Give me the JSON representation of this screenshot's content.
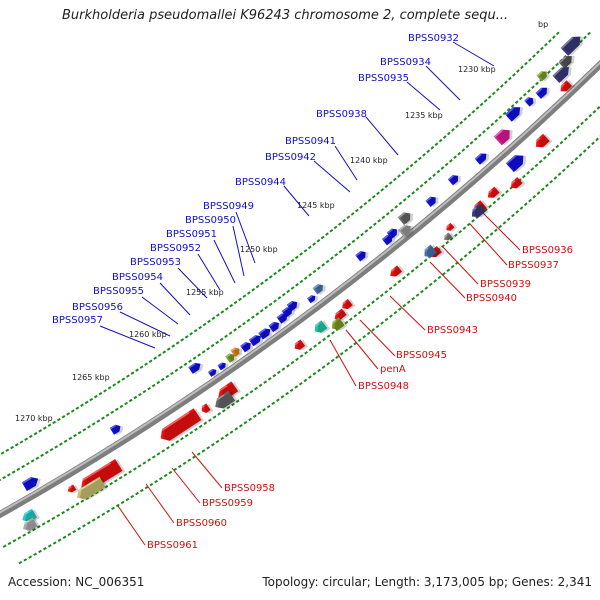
{
  "title": "Burkholderia pseudomallei K96243 chromosome 2, complete sequ...",
  "accession_label": "Accession: NC_006351",
  "summary_label": "Topology: circular; Length: 3,173,005 bp; Genes: 2,341",
  "colors": {
    "backbone": "#8a8a8a",
    "forward_gene": "#1010e0",
    "reverse_gene": "#ee1111",
    "top_label": "#1010c8",
    "bottom_label": "#d01010",
    "tick": "#1a8a1a"
  },
  "ruler": [
    {
      "text": "1230 kbp"
    },
    {
      "text": "1235 kbp"
    },
    {
      "text": "1240 kbp"
    },
    {
      "text": "1245 kbp"
    },
    {
      "text": "1250 kbp"
    },
    {
      "text": "1255 kbp"
    },
    {
      "text": "1260 kbp"
    },
    {
      "text": "1265 kbp"
    },
    {
      "text": "1270 kbp"
    },
    {
      "text": "bp"
    }
  ],
  "top_labels": [
    {
      "text": "BPSS0932"
    },
    {
      "text": "BPSS0934"
    },
    {
      "text": "BPSS0935"
    },
    {
      "text": "BPSS0938"
    },
    {
      "text": "BPSS0941"
    },
    {
      "text": "BPSS0942"
    },
    {
      "text": "BPSS0944"
    },
    {
      "text": "BPSS0949"
    },
    {
      "text": "BPSS0950"
    },
    {
      "text": "BPSS0951"
    },
    {
      "text": "BPSS0952"
    },
    {
      "text": "BPSS0953"
    },
    {
      "text": "BPSS0954"
    },
    {
      "text": "BPSS0955"
    },
    {
      "text": "BPSS0956"
    },
    {
      "text": "BPSS0957"
    }
  ],
  "bottom_labels": [
    {
      "text": "BPSS0936"
    },
    {
      "text": "BPSS0937"
    },
    {
      "text": "BPSS0939"
    },
    {
      "text": "BPSS0940"
    },
    {
      "text": "BPSS0943"
    },
    {
      "text": "BPSS0945"
    },
    {
      "text": "penA"
    },
    {
      "text": "BPSS0948"
    },
    {
      "text": "BPSS0958"
    },
    {
      "text": "BPSS0959"
    },
    {
      "text": "BPSS0960"
    },
    {
      "text": "BPSS0961"
    }
  ]
}
